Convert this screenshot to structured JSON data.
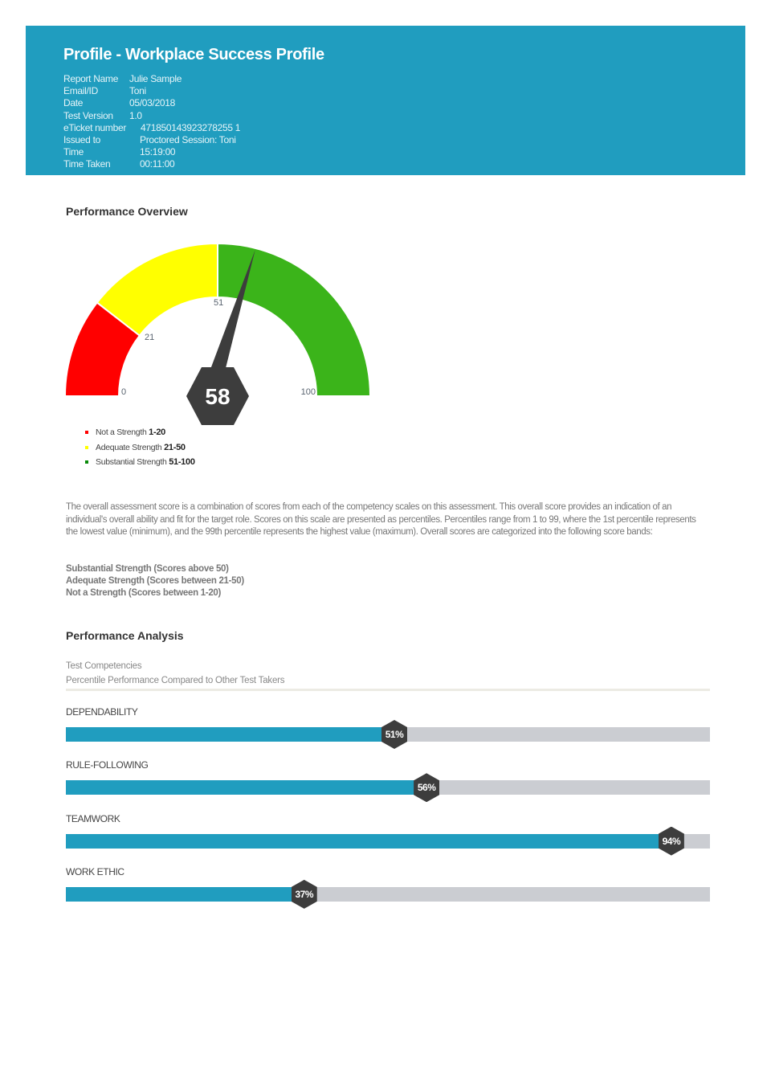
{
  "header": {
    "title": "Profile - Workplace Success Profile",
    "rows": [
      {
        "label": "Report Name",
        "value": "Julie Sample"
      },
      {
        "label": "Email/ID",
        "value": "Toni"
      },
      {
        "label": "Date",
        "value": "05/03/2018"
      },
      {
        "label": "Test Version",
        "value": "1.0"
      },
      {
        "label": "eTicket number",
        "value": "471850143923278255 1"
      },
      {
        "label": "Issued to",
        "value": "Proctored Session: Toni"
      },
      {
        "label": "Time",
        "value": "15:19:00"
      },
      {
        "label": "Time Taken",
        "value": "00:11:00"
      }
    ]
  },
  "overview": {
    "heading": "Performance Overview",
    "score": 58,
    "score_label": "58",
    "bands": [
      {
        "from": 0,
        "to": 21,
        "color": "#ff0000"
      },
      {
        "from": 21,
        "to": 50,
        "color": "#ffff00"
      },
      {
        "from": 50,
        "to": 100,
        "color": "#3bb41a"
      }
    ],
    "tick_labels": [
      "0",
      "21",
      "51",
      "100"
    ],
    "legend": [
      {
        "label": "Not a Strength",
        "range": "1-20",
        "color": "#ff0000"
      },
      {
        "label": "Adequate Strength",
        "range": "21-50",
        "color": "#ffff00"
      },
      {
        "label": "Substantial Strength",
        "range": "51-100",
        "color": "#0a8a0a"
      }
    ],
    "description": "The overall assessment score is a combination of scores from each of the competency scales on this assessment. This overall score provides an indication of an individual's overall ability and fit for the target role. Scores on this scale are presented as percentiles. Percentiles range from 1 to 99, where the 1st percentile represents the lowest value (minimum), and the 99th percentile represents the highest value (maximum). Overall scores are categorized into the following score bands:",
    "band_lines": [
      "Substantial Strength (Scores above 50)",
      "Adequate Strength (Scores between 21-50)",
      "Not a Strength (Scores between 1-20)"
    ]
  },
  "analysis": {
    "heading": "Performance Analysis",
    "subtitle1": "Test Competencies",
    "subtitle2": "Percentile Performance Compared to Other Test Takers",
    "competencies": [
      {
        "name": "DEPENDABILITY",
        "percent": 51,
        "label": "51%"
      },
      {
        "name": "RULE-FOLLOWING",
        "percent": 56,
        "label": "56%"
      },
      {
        "name": "TEAMWORK",
        "percent": 94,
        "label": "94%"
      },
      {
        "name": "WORK ETHIC",
        "percent": 37,
        "label": "37%"
      }
    ],
    "colors": {
      "fill": "#209dbf",
      "track": "#cbcdd2",
      "marker": "#3d3d3d"
    }
  }
}
